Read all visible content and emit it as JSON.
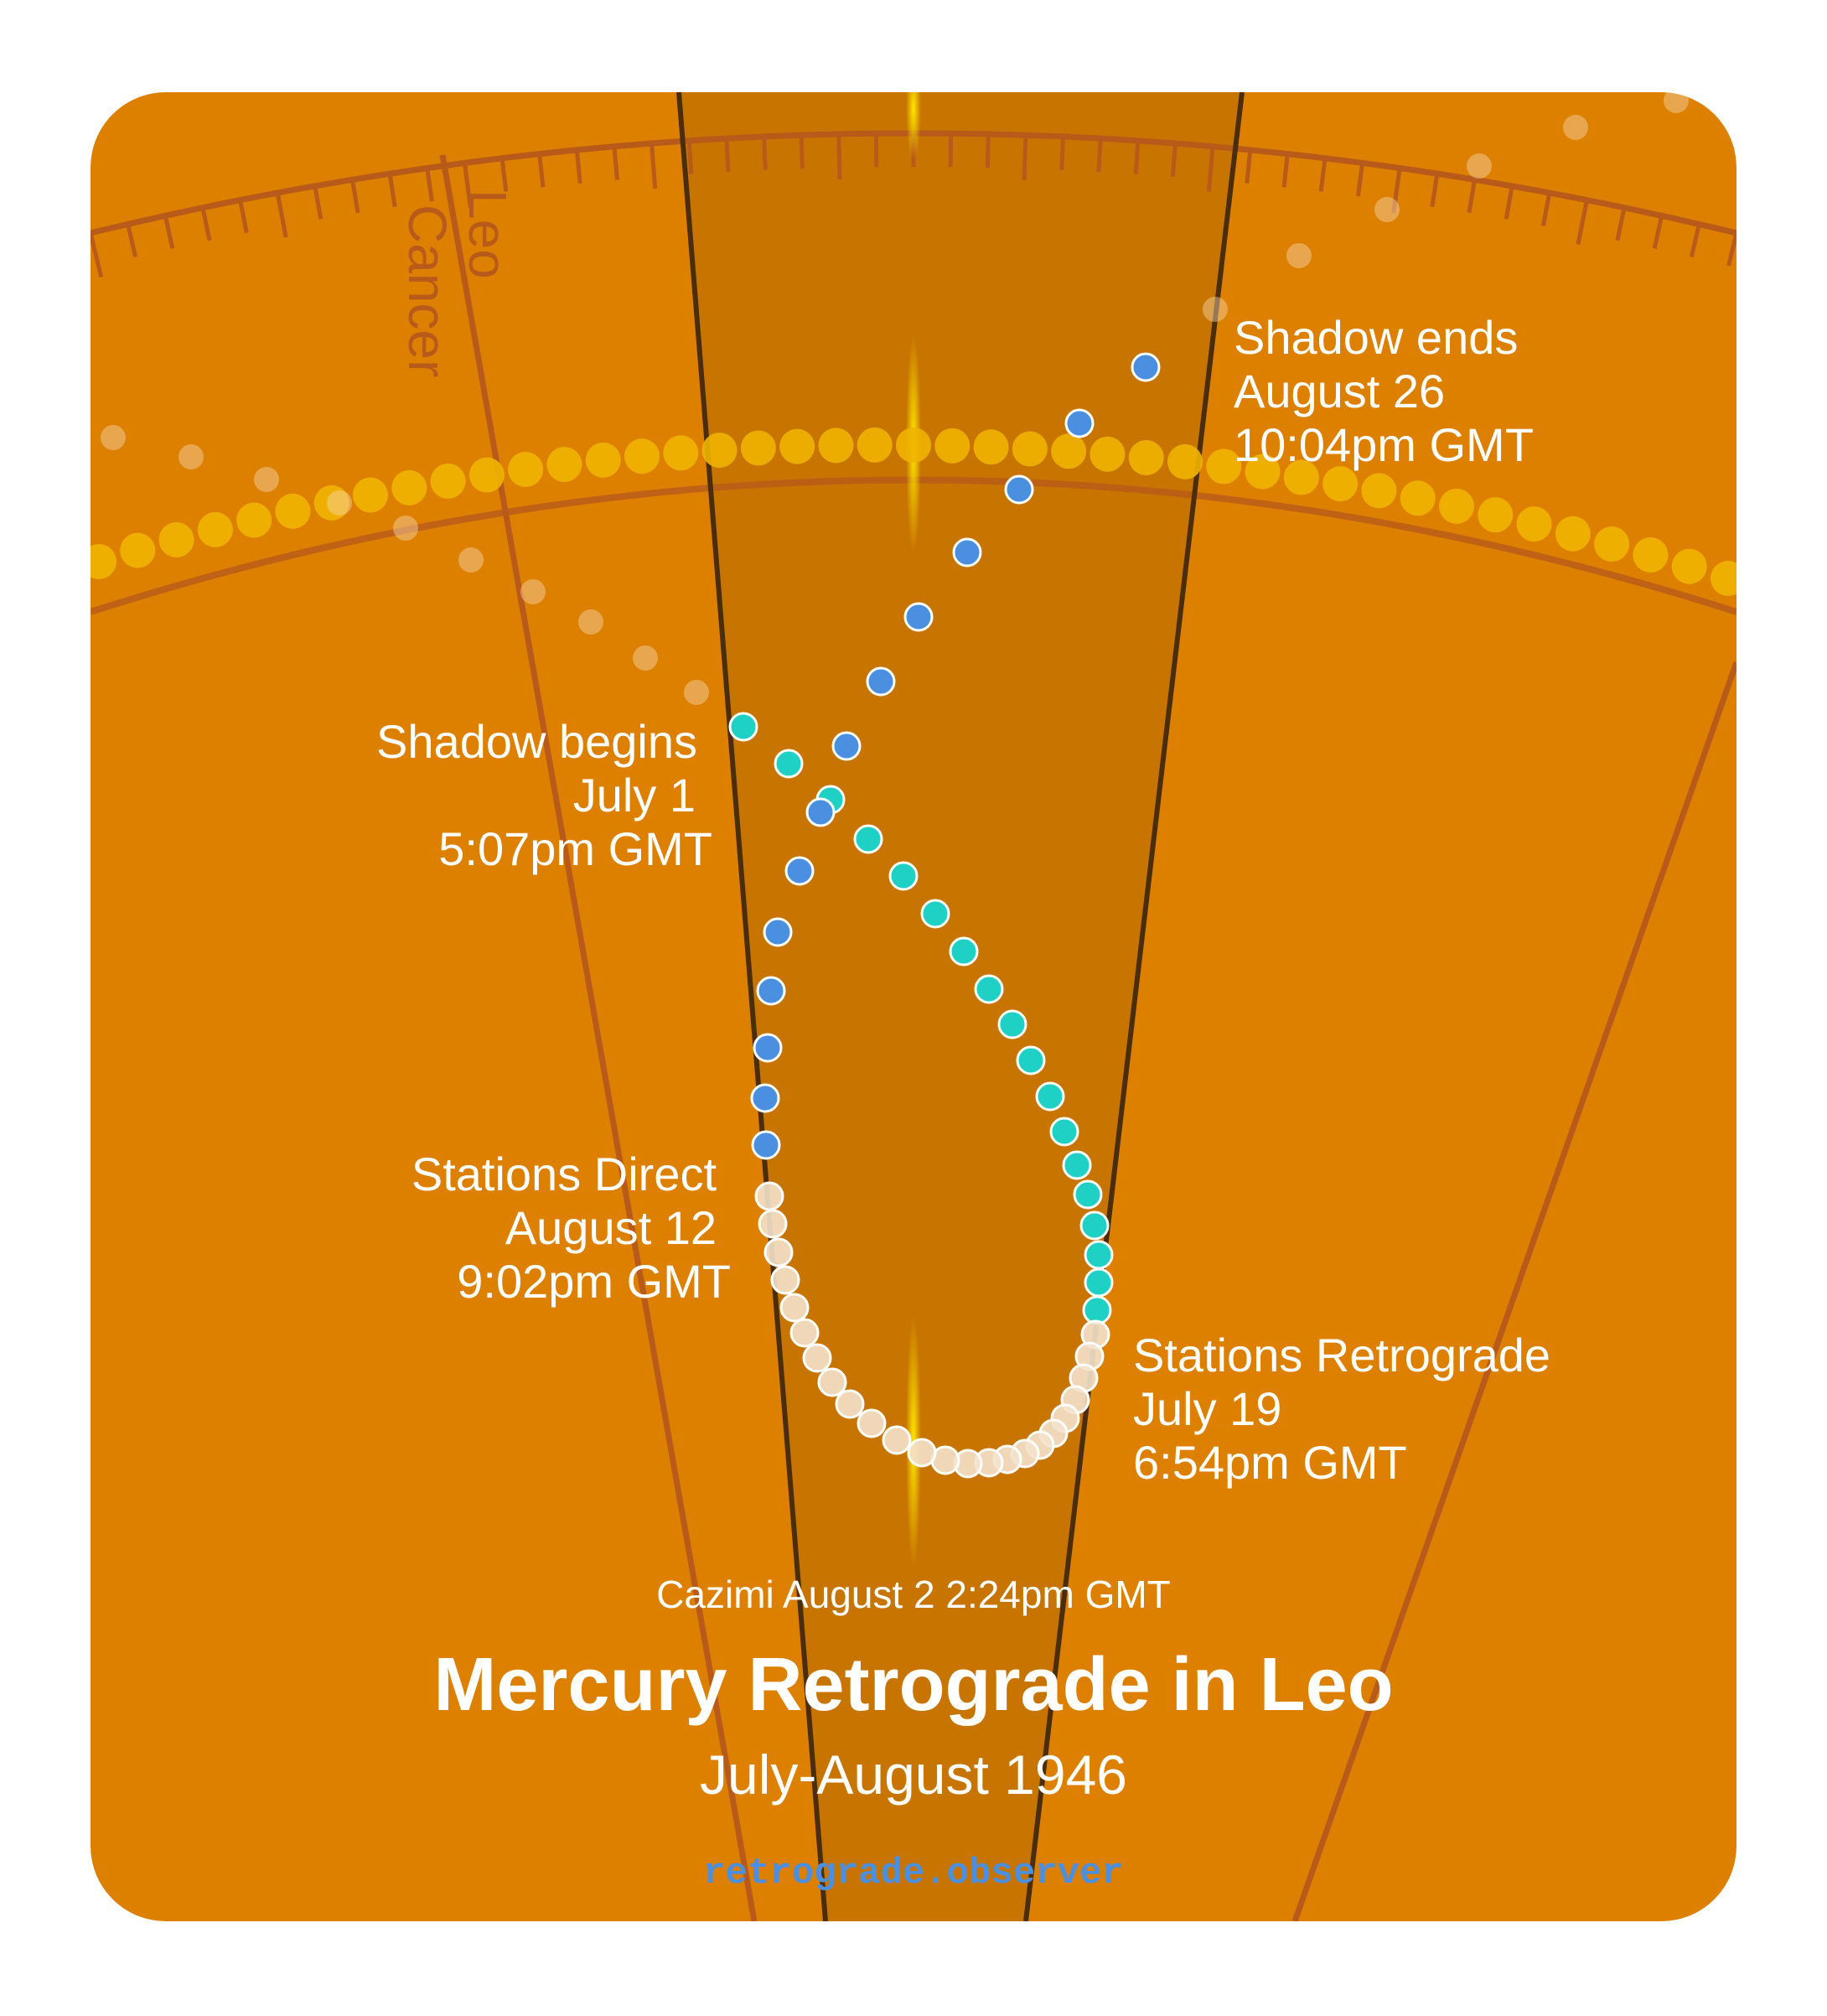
{
  "title": "Mercury Retrograde in Leo",
  "subtitle": "July-August 1946",
  "cazimi": "Cazimi August 2 2:24pm GMT",
  "site": "retrograde.observer",
  "signs": {
    "leo": "Leo",
    "cancer": "Cancer"
  },
  "events": {
    "shadow_ends": {
      "line1": "Shadow ends",
      "line2": "August 26",
      "line3": "10:04pm GMT"
    },
    "shadow_begins": {
      "line1": "Shadow begins",
      "line2": "July 1",
      "line3": "5:07pm GMT"
    },
    "stations_direct": {
      "line1": "Stations Direct",
      "line2": "August 12",
      "line3": "9:02pm GMT"
    },
    "stations_retrograde": {
      "line1": "Stations Retrograde",
      "line2": "July 19",
      "line3": "6:54pm GMT"
    }
  },
  "colors": {
    "background": "#DD8000",
    "shadow_band": "#C77500",
    "band_edge": "#4A2E0B",
    "zodiac_line": "#B85A1A",
    "sun_dots": "#F0B400",
    "pre_shadow": "#1FD1C4",
    "retrograde": "#F3E2CC",
    "post_shadow": "#4A8FE0",
    "site_text": "#4A8FE0",
    "text": "#FFFFFF"
  },
  "path_phases": [
    {
      "phase": "pre-shadow",
      "color_key": "pre_shadow",
      "from": "July 1",
      "to": "July 19"
    },
    {
      "phase": "retrograde",
      "color_key": "retrograde",
      "from": "July 19",
      "to": "August 12"
    },
    {
      "phase": "post-shadow",
      "color_key": "post_shadow",
      "from": "August 12",
      "to": "August 26"
    }
  ]
}
